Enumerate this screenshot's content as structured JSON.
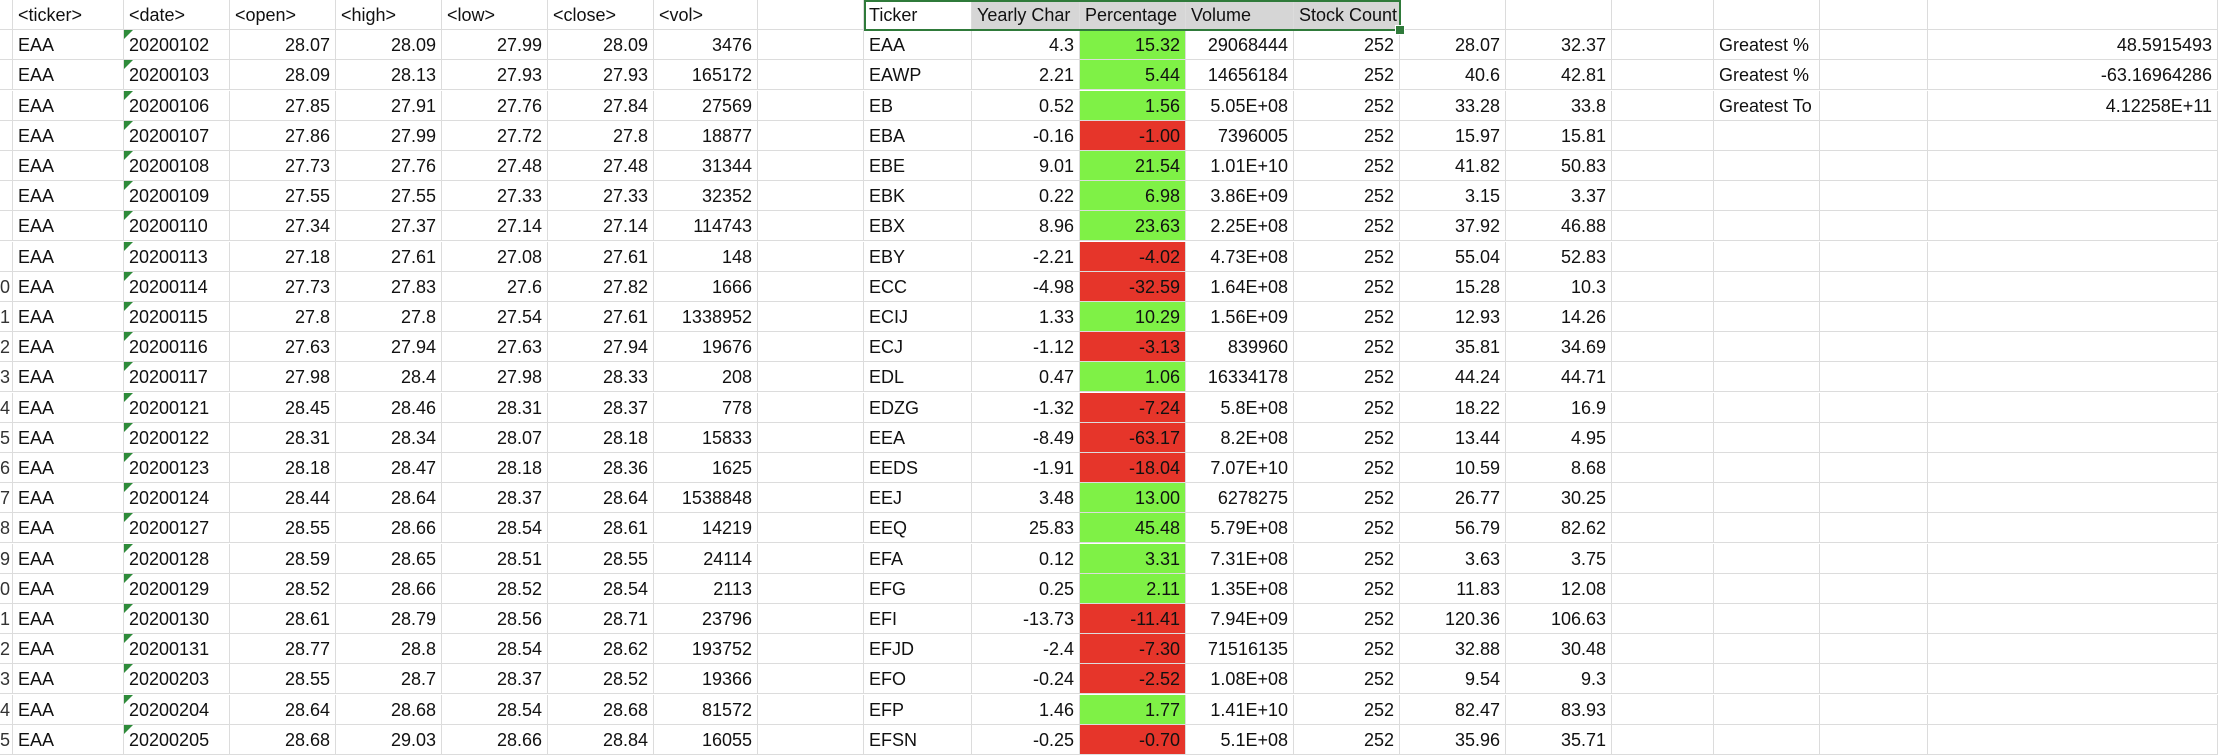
{
  "sheet": {
    "raw_headers": [
      "<ticker>",
      "<date>",
      "<open>",
      "<high>",
      "<low>",
      "<close>",
      "<vol>"
    ],
    "summary_headers": [
      "Ticker",
      "Yearly Char",
      "Percentage",
      "Volume",
      "Stock Count"
    ],
    "greatest": [
      {
        "label": "Greatest %",
        "value": "48.5915493"
      },
      {
        "label": "Greatest %",
        "value": "-63.16964286"
      },
      {
        "label": "Greatest To",
        "value": "4.12258E+11"
      }
    ],
    "row_numbers": [
      "",
      "",
      "",
      "",
      "",
      "",
      "",
      "",
      "",
      "0",
      "1",
      "2",
      "3",
      "4",
      "5",
      "6",
      "7",
      "8",
      "9",
      "0",
      "1",
      "2",
      "3",
      "4",
      "5"
    ],
    "rows": [
      {
        "raw": [
          "EAA",
          "20200102",
          "28.07",
          "28.09",
          "27.99",
          "28.09",
          "3476"
        ],
        "summary": [
          "EAA",
          "4.3",
          "15.32",
          "29068444",
          "252",
          "28.07",
          "32.37"
        ],
        "status": "green"
      },
      {
        "raw": [
          "EAA",
          "20200103",
          "28.09",
          "28.13",
          "27.93",
          "27.93",
          "165172"
        ],
        "summary": [
          "EAWP",
          "2.21",
          "5.44",
          "14656184",
          "252",
          "40.6",
          "42.81"
        ],
        "status": "green"
      },
      {
        "raw": [
          "EAA",
          "20200106",
          "27.85",
          "27.91",
          "27.76",
          "27.84",
          "27569"
        ],
        "summary": [
          "EB",
          "0.52",
          "1.56",
          "5.05E+08",
          "252",
          "33.28",
          "33.8"
        ],
        "status": "green"
      },
      {
        "raw": [
          "EAA",
          "20200107",
          "27.86",
          "27.99",
          "27.72",
          "27.8",
          "18877"
        ],
        "summary": [
          "EBA",
          "-0.16",
          "-1.00",
          "7396005",
          "252",
          "15.97",
          "15.81"
        ],
        "status": "red"
      },
      {
        "raw": [
          "EAA",
          "20200108",
          "27.73",
          "27.76",
          "27.48",
          "27.48",
          "31344"
        ],
        "summary": [
          "EBE",
          "9.01",
          "21.54",
          "1.01E+10",
          "252",
          "41.82",
          "50.83"
        ],
        "status": "green"
      },
      {
        "raw": [
          "EAA",
          "20200109",
          "27.55",
          "27.55",
          "27.33",
          "27.33",
          "32352"
        ],
        "summary": [
          "EBK",
          "0.22",
          "6.98",
          "3.86E+09",
          "252",
          "3.15",
          "3.37"
        ],
        "status": "green"
      },
      {
        "raw": [
          "EAA",
          "20200110",
          "27.34",
          "27.37",
          "27.14",
          "27.14",
          "114743"
        ],
        "summary": [
          "EBX",
          "8.96",
          "23.63",
          "2.25E+08",
          "252",
          "37.92",
          "46.88"
        ],
        "status": "green"
      },
      {
        "raw": [
          "EAA",
          "20200113",
          "27.18",
          "27.61",
          "27.08",
          "27.61",
          "148"
        ],
        "summary": [
          "EBY",
          "-2.21",
          "-4.02",
          "4.73E+08",
          "252",
          "55.04",
          "52.83"
        ],
        "status": "red"
      },
      {
        "raw": [
          "EAA",
          "20200114",
          "27.73",
          "27.83",
          "27.6",
          "27.82",
          "1666"
        ],
        "summary": [
          "ECC",
          "-4.98",
          "-32.59",
          "1.64E+08",
          "252",
          "15.28",
          "10.3"
        ],
        "status": "red"
      },
      {
        "raw": [
          "EAA",
          "20200115",
          "27.8",
          "27.8",
          "27.54",
          "27.61",
          "1338952"
        ],
        "summary": [
          "ECIJ",
          "1.33",
          "10.29",
          "1.56E+09",
          "252",
          "12.93",
          "14.26"
        ],
        "status": "green"
      },
      {
        "raw": [
          "EAA",
          "20200116",
          "27.63",
          "27.94",
          "27.63",
          "27.94",
          "19676"
        ],
        "summary": [
          "ECJ",
          "-1.12",
          "-3.13",
          "839960",
          "252",
          "35.81",
          "34.69"
        ],
        "status": "red"
      },
      {
        "raw": [
          "EAA",
          "20200117",
          "27.98",
          "28.4",
          "27.98",
          "28.33",
          "208"
        ],
        "summary": [
          "EDL",
          "0.47",
          "1.06",
          "16334178",
          "252",
          "44.24",
          "44.71"
        ],
        "status": "green"
      },
      {
        "raw": [
          "EAA",
          "20200121",
          "28.45",
          "28.46",
          "28.31",
          "28.37",
          "778"
        ],
        "summary": [
          "EDZG",
          "-1.32",
          "-7.24",
          "5.8E+08",
          "252",
          "18.22",
          "16.9"
        ],
        "status": "red"
      },
      {
        "raw": [
          "EAA",
          "20200122",
          "28.31",
          "28.34",
          "28.07",
          "28.18",
          "15833"
        ],
        "summary": [
          "EEA",
          "-8.49",
          "-63.17",
          "8.2E+08",
          "252",
          "13.44",
          "4.95"
        ],
        "status": "red"
      },
      {
        "raw": [
          "EAA",
          "20200123",
          "28.18",
          "28.47",
          "28.18",
          "28.36",
          "1625"
        ],
        "summary": [
          "EEDS",
          "-1.91",
          "-18.04",
          "7.07E+10",
          "252",
          "10.59",
          "8.68"
        ],
        "status": "red"
      },
      {
        "raw": [
          "EAA",
          "20200124",
          "28.44",
          "28.64",
          "28.37",
          "28.64",
          "1538848"
        ],
        "summary": [
          "EEJ",
          "3.48",
          "13.00",
          "6278275",
          "252",
          "26.77",
          "30.25"
        ],
        "status": "green"
      },
      {
        "raw": [
          "EAA",
          "20200127",
          "28.55",
          "28.66",
          "28.54",
          "28.61",
          "14219"
        ],
        "summary": [
          "EEQ",
          "25.83",
          "45.48",
          "5.79E+08",
          "252",
          "56.79",
          "82.62"
        ],
        "status": "green"
      },
      {
        "raw": [
          "EAA",
          "20200128",
          "28.59",
          "28.65",
          "28.51",
          "28.55",
          "24114"
        ],
        "summary": [
          "EFA",
          "0.12",
          "3.31",
          "7.31E+08",
          "252",
          "3.63",
          "3.75"
        ],
        "status": "green"
      },
      {
        "raw": [
          "EAA",
          "20200129",
          "28.52",
          "28.66",
          "28.52",
          "28.54",
          "2113"
        ],
        "summary": [
          "EFG",
          "0.25",
          "2.11",
          "1.35E+08",
          "252",
          "11.83",
          "12.08"
        ],
        "status": "green"
      },
      {
        "raw": [
          "EAA",
          "20200130",
          "28.61",
          "28.79",
          "28.56",
          "28.71",
          "23796"
        ],
        "summary": [
          "EFI",
          "-13.73",
          "-11.41",
          "7.94E+09",
          "252",
          "120.36",
          "106.63"
        ],
        "status": "red"
      },
      {
        "raw": [
          "EAA",
          "20200131",
          "28.77",
          "28.8",
          "28.54",
          "28.62",
          "193752"
        ],
        "summary": [
          "EFJD",
          "-2.4",
          "-7.30",
          "71516135",
          "252",
          "32.88",
          "30.48"
        ],
        "status": "red"
      },
      {
        "raw": [
          "EAA",
          "20200203",
          "28.55",
          "28.7",
          "28.37",
          "28.52",
          "19366"
        ],
        "summary": [
          "EFO",
          "-0.24",
          "-2.52",
          "1.08E+08",
          "252",
          "9.54",
          "9.3"
        ],
        "status": "red"
      },
      {
        "raw": [
          "EAA",
          "20200204",
          "28.64",
          "28.68",
          "28.54",
          "28.68",
          "81572"
        ],
        "summary": [
          "EFP",
          "1.46",
          "1.77",
          "1.41E+10",
          "252",
          "82.47",
          "83.93"
        ],
        "status": "green"
      },
      {
        "raw": [
          "EAA",
          "20200205",
          "28.68",
          "29.03",
          "28.66",
          "28.84",
          "16055"
        ],
        "summary": [
          "EFSN",
          "-0.25",
          "-0.70",
          "5.1E+08",
          "252",
          "35.96",
          "35.71"
        ],
        "status": "red"
      }
    ]
  }
}
